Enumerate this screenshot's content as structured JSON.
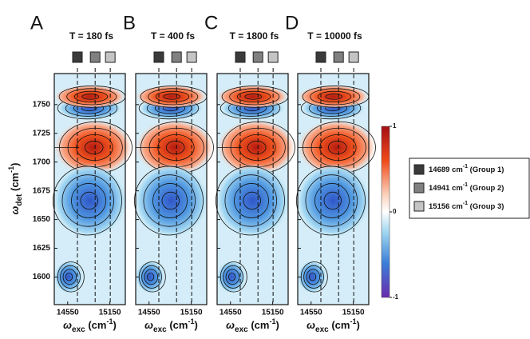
{
  "chart_data": [
    {
      "type": "contour",
      "panel": "A",
      "title": "T = 180 fs",
      "xlim": [
        14360,
        15370
      ],
      "xticks": [
        14550,
        15150
      ],
      "ylim": [
        1576,
        1777
      ],
      "yticks": [
        1600,
        1625,
        1650,
        1675,
        1700,
        1725,
        1750
      ]
    },
    {
      "type": "contour",
      "panel": "B",
      "title": "T = 400 fs",
      "xlim": [
        14360,
        15370
      ],
      "xticks": [
        14550,
        15150
      ]
    },
    {
      "type": "contour",
      "panel": "C",
      "title": "T = 1800 fs",
      "xlim": [
        14360,
        15370
      ],
      "xticks": [
        14550,
        15150
      ]
    },
    {
      "type": "contour",
      "panel": "D",
      "title": "T = 10000 fs",
      "xlim": [
        14360,
        15370
      ],
      "xticks": [
        14550,
        15150
      ]
    }
  ],
  "figure": {
    "x_label": {
      "symbol": "ω",
      "sub": "exc",
      "unit": "(cm",
      "sup": "-1",
      "close": ")"
    },
    "y_label": {
      "symbol": "ω",
      "sub": "det",
      "unit": "(cm",
      "sup": "-1",
      "close": ")"
    },
    "colorbar": {
      "zlim": [
        -1,
        1
      ],
      "ticks": [
        1,
        0,
        -1
      ]
    },
    "groups": [
      {
        "value": 14689,
        "unit": "cm",
        "sup": "-1",
        "name": "(Group 1)",
        "color": "#3a3a3a"
      },
      {
        "value": 14941,
        "unit": "cm",
        "sup": "-1",
        "name": "(Group 2)",
        "color": "#808080"
      },
      {
        "value": 15156,
        "unit": "cm",
        "sup": "-1",
        "name": "(Group 3)",
        "color": "#c4c4c4"
      }
    ]
  }
}
